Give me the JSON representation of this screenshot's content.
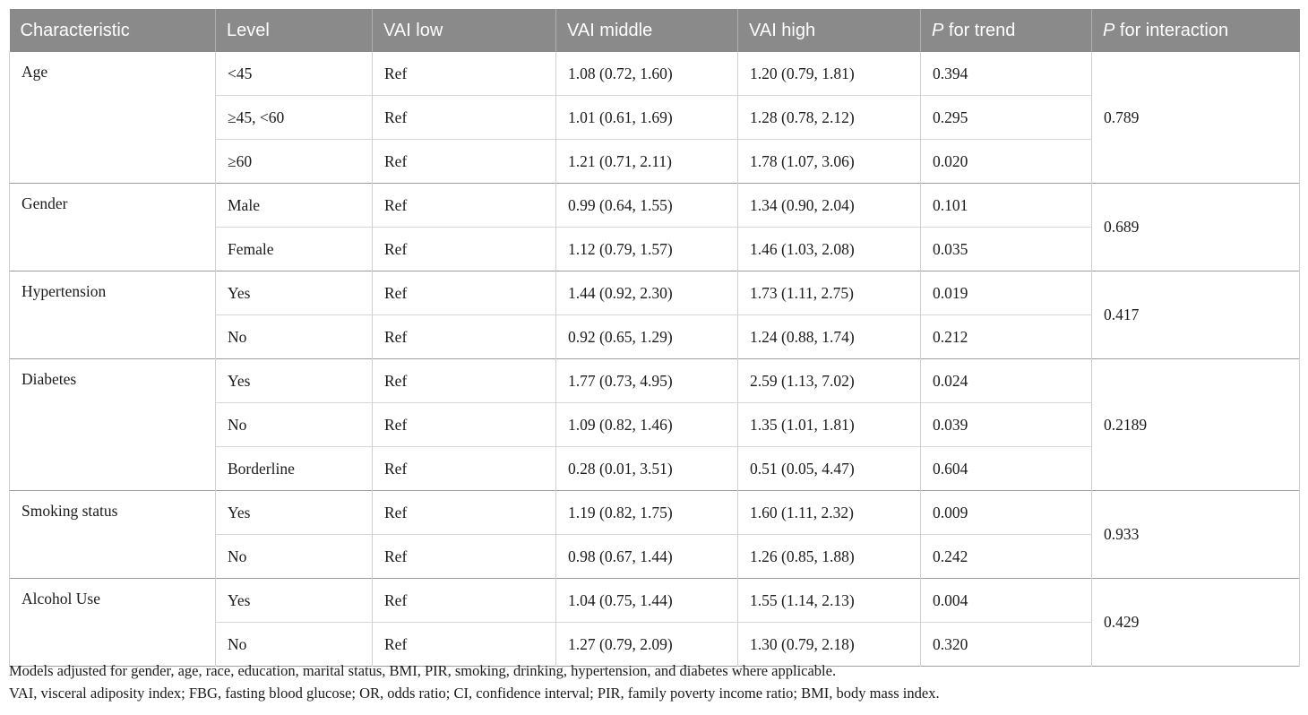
{
  "table": {
    "header": [
      {
        "italic": "",
        "label": "Characteristic"
      },
      {
        "italic": "",
        "label": "Level"
      },
      {
        "italic": "",
        "label": "VAI low"
      },
      {
        "italic": "",
        "label": "VAI middle"
      },
      {
        "italic": "",
        "label": "VAI high"
      },
      {
        "italic": "P",
        "label": " for trend"
      },
      {
        "italic": "P",
        "label": " for interaction"
      }
    ],
    "groups": [
      {
        "characteristic": "Age",
        "p_interaction": "0.789",
        "rows": [
          {
            "level": "<45",
            "vai_low": "Ref",
            "vai_middle": "1.08 (0.72, 1.60)",
            "vai_high": "1.20 (0.79, 1.81)",
            "p_trend": "0.394"
          },
          {
            "level": "≥45, <60",
            "vai_low": "Ref",
            "vai_middle": "1.01 (0.61, 1.69)",
            "vai_high": "1.28 (0.78, 2.12)",
            "p_trend": "0.295"
          },
          {
            "level": "≥60",
            "vai_low": "Ref",
            "vai_middle": "1.21 (0.71, 2.11)",
            "vai_high": "1.78 (1.07, 3.06)",
            "p_trend": "0.020"
          }
        ]
      },
      {
        "characteristic": "Gender",
        "p_interaction": "0.689",
        "rows": [
          {
            "level": "Male",
            "vai_low": "Ref",
            "vai_middle": "0.99 (0.64, 1.55)",
            "vai_high": "1.34 (0.90, 2.04)",
            "p_trend": "0.101"
          },
          {
            "level": "Female",
            "vai_low": "Ref",
            "vai_middle": "1.12 (0.79, 1.57)",
            "vai_high": "1.46 (1.03, 2.08)",
            "p_trend": "0.035"
          }
        ]
      },
      {
        "characteristic": "Hypertension",
        "p_interaction": "0.417",
        "rows": [
          {
            "level": "Yes",
            "vai_low": "Ref",
            "vai_middle": "1.44 (0.92, 2.30)",
            "vai_high": "1.73 (1.11, 2.75)",
            "p_trend": "0.019"
          },
          {
            "level": "No",
            "vai_low": "Ref",
            "vai_middle": "0.92 (0.65, 1.29)",
            "vai_high": "1.24 (0.88, 1.74)",
            "p_trend": "0.212"
          }
        ]
      },
      {
        "characteristic": "Diabetes",
        "p_interaction": "0.2189",
        "rows": [
          {
            "level": "Yes",
            "vai_low": "Ref",
            "vai_middle": "1.77 (0.73, 4.95)",
            "vai_high": "2.59 (1.13, 7.02)",
            "p_trend": "0.024"
          },
          {
            "level": "No",
            "vai_low": "Ref",
            "vai_middle": "1.09 (0.82, 1.46)",
            "vai_high": "1.35 (1.01, 1.81)",
            "p_trend": "0.039"
          },
          {
            "level": "Borderline",
            "vai_low": "Ref",
            "vai_middle": "0.28 (0.01, 3.51)",
            "vai_high": "0.51 (0.05, 4.47)",
            "p_trend": "0.604"
          }
        ]
      },
      {
        "characteristic": "Smoking status",
        "p_interaction": "0.933",
        "rows": [
          {
            "level": "Yes",
            "vai_low": "Ref",
            "vai_middle": "1.19 (0.82, 1.75)",
            "vai_high": "1.60 (1.11, 2.32)",
            "p_trend": "0.009"
          },
          {
            "level": "No",
            "vai_low": "Ref",
            "vai_middle": "0.98 (0.67, 1.44)",
            "vai_high": "1.26 (0.85, 1.88)",
            "p_trend": "0.242"
          }
        ]
      },
      {
        "characteristic": "Alcohol Use",
        "p_interaction": "0.429",
        "rows": [
          {
            "level": "Yes",
            "vai_low": "Ref",
            "vai_middle": "1.04 (0.75, 1.44)",
            "vai_high": "1.55 (1.14, 2.13)",
            "p_trend": "0.004"
          },
          {
            "level": "No",
            "vai_low": "Ref",
            "vai_middle": "1.27 (0.79, 2.09)",
            "vai_high": "1.30 (0.79, 2.18)",
            "p_trend": "0.320"
          }
        ]
      }
    ]
  },
  "footnotes": [
    "Models adjusted for gender, age, race, education, marital status, BMI, PIR, smoking, drinking, hypertension, and diabetes where applicable.",
    "VAI, visceral adiposity index; FBG, fasting blood glucose; OR, odds ratio; CI, confidence interval; PIR, family poverty income ratio; BMI, body mass index."
  ],
  "colors": {
    "header_bg": "#8a8a8a",
    "header_text": "#ffffff",
    "body_text": "#1b1b1b",
    "grid_light": "#cfcfcf",
    "grid_group": "#9d9d9d"
  }
}
